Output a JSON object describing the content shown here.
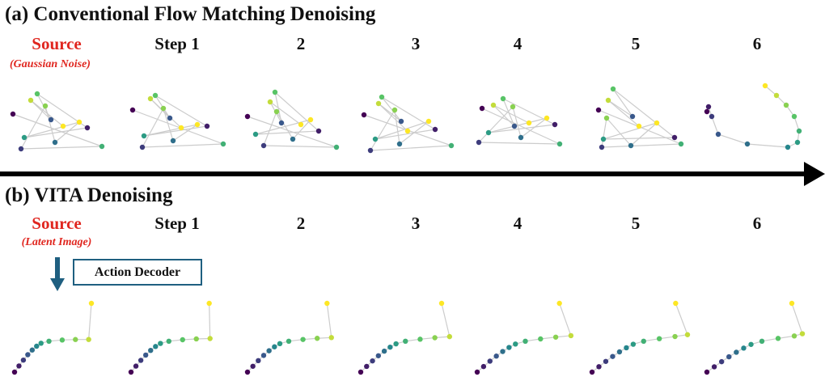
{
  "section_a": {
    "title": "(a) Conventional Flow Matching Denoising",
    "source_label": "Source",
    "source_sub": "(Gaussian Noise)",
    "step_labels": [
      "Step 1",
      "2",
      "3",
      "4",
      "5",
      "6"
    ]
  },
  "section_b": {
    "title": "(b) VITA Denoising",
    "source_label": "Source",
    "source_sub": "(Latent Image)",
    "step_labels": [
      "Step 1",
      "2",
      "3",
      "4",
      "5",
      "6"
    ],
    "decoder_label": "Action Decoder"
  },
  "colors": {
    "source_red": "#e0261f",
    "decoder_blue": "#1f5f80",
    "arrow": "#000000",
    "link": "#cccccc",
    "viridis": [
      "#440154",
      "#3b528b",
      "#21918c",
      "#5ec962",
      "#fde725"
    ]
  }
}
